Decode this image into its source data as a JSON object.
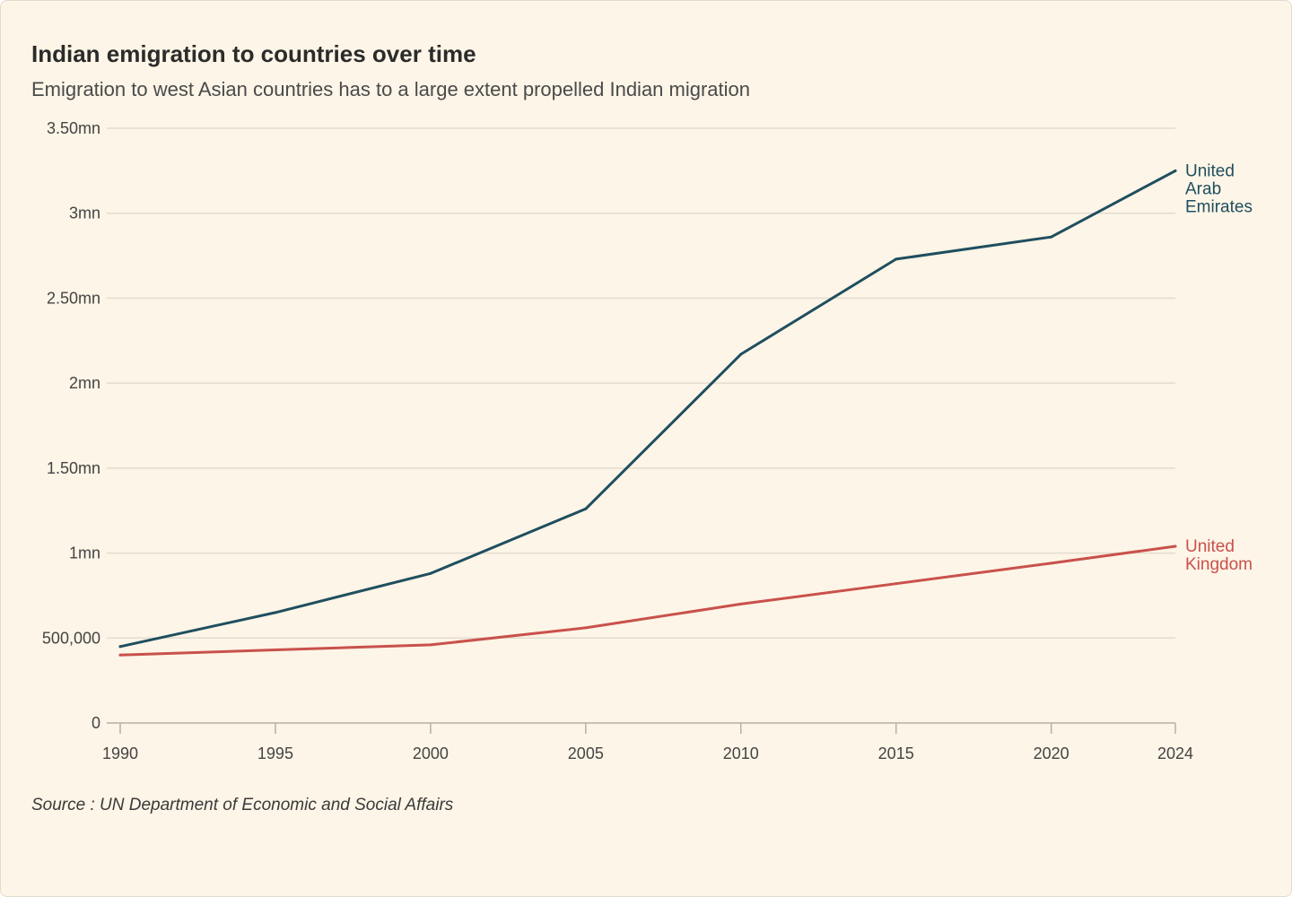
{
  "title": "Indian emigration to countries over time",
  "subtitle": "Emigration to west Asian countries has to a large extent propelled Indian migration",
  "source": "Source : UN Department of Economic and Social Affairs",
  "colors": {
    "uae": "#1f4e5f",
    "uk": "#c9514c",
    "grid": "#e3ddd0",
    "axis": "#b5b0a6"
  },
  "chart_data": {
    "type": "line",
    "title": "Indian emigration to countries over time",
    "xlabel": "",
    "ylabel": "",
    "x": [
      1990,
      1995,
      2000,
      2005,
      2010,
      2015,
      2020,
      2024
    ],
    "xlim": [
      1990,
      2024
    ],
    "ylim": [
      0,
      3500000
    ],
    "y_ticks": [
      {
        "value": 0,
        "label": "0"
      },
      {
        "value": 500000,
        "label": "500,000"
      },
      {
        "value": 1000000,
        "label": "1mn"
      },
      {
        "value": 1500000,
        "label": "1.50mn"
      },
      {
        "value": 2000000,
        "label": "2mn"
      },
      {
        "value": 2500000,
        "label": "2.50mn"
      },
      {
        "value": 3000000,
        "label": "3mn"
      },
      {
        "value": 3500000,
        "label": "3.50mn"
      }
    ],
    "x_ticks": [
      "1990",
      "1995",
      "2000",
      "2005",
      "2010",
      "2015",
      "2020",
      "2024"
    ],
    "grid": true,
    "series": [
      {
        "name": "United Arab Emirates",
        "label_lines": [
          "United",
          "Arab",
          "Emirates"
        ],
        "color": "#1f4e5f",
        "values": [
          450000,
          650000,
          880000,
          1260000,
          2170000,
          2730000,
          2860000,
          3250000
        ]
      },
      {
        "name": "United Kingdom",
        "label_lines": [
          "United",
          "Kingdom"
        ],
        "color": "#c9514c",
        "values": [
          400000,
          430000,
          460000,
          560000,
          700000,
          820000,
          940000,
          1040000
        ]
      }
    ]
  }
}
